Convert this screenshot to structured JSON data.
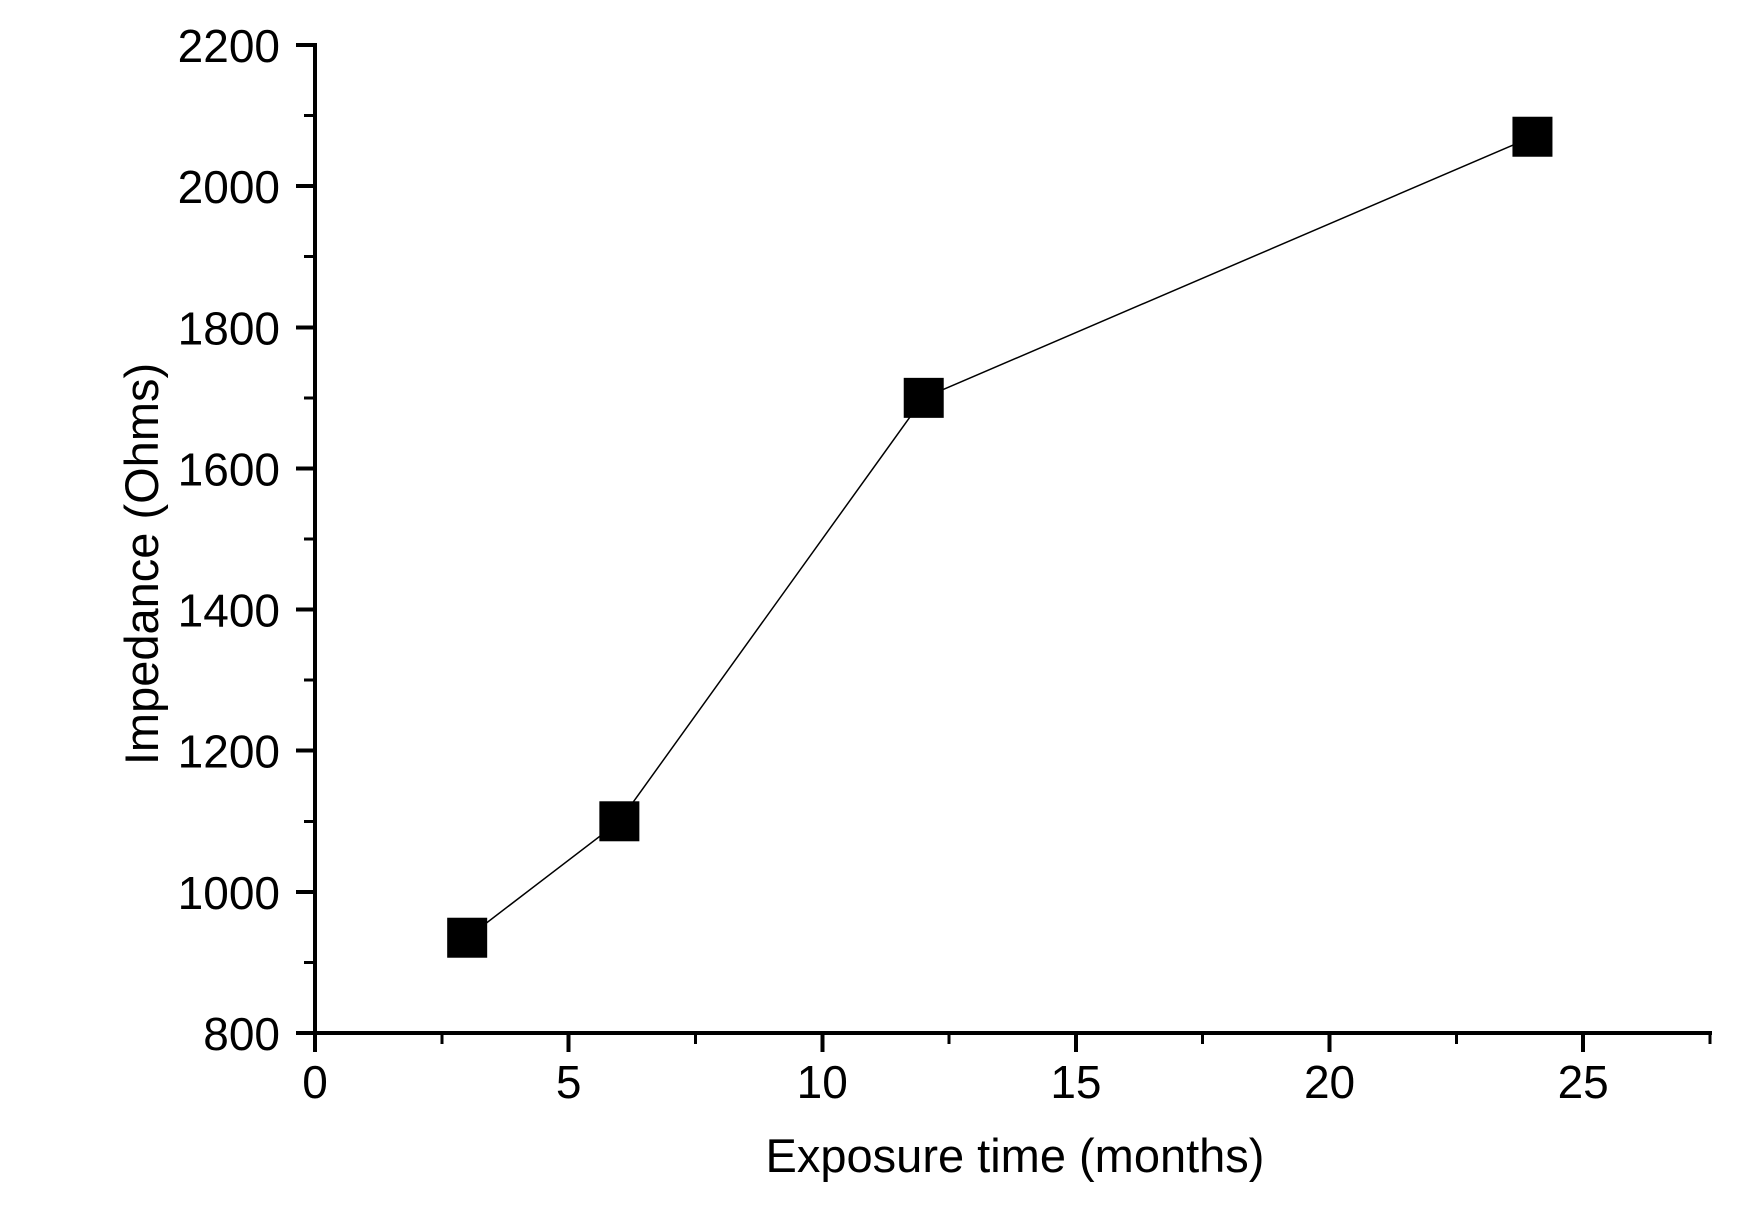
{
  "chart_data": {
    "type": "line",
    "title": "",
    "xlabel": "Exposure time (months)",
    "ylabel": "Impedance (Ohms)",
    "x": [
      3,
      6,
      12,
      24
    ],
    "y": [
      935,
      1100,
      1700,
      2070
    ],
    "xlim": [
      0,
      27.5
    ],
    "ylim": [
      800,
      2200
    ],
    "x_major_ticks": [
      0,
      5,
      10,
      15,
      20,
      25
    ],
    "x_minor_ticks": [
      2.5,
      7.5,
      12.5,
      17.5,
      22.5,
      27.5
    ],
    "y_major_ticks": [
      800,
      1000,
      1200,
      1400,
      1600,
      1800,
      2000,
      2200
    ],
    "y_minor_ticks": [
      900,
      1100,
      1300,
      1500,
      1700,
      1900,
      2100
    ],
    "marker": "filled-square",
    "marker_size_px": 40,
    "marker_color": "#000000",
    "line_color": "#000000",
    "axis_color": "#000000",
    "background": "#ffffff",
    "grid": false,
    "legend": "none"
  }
}
